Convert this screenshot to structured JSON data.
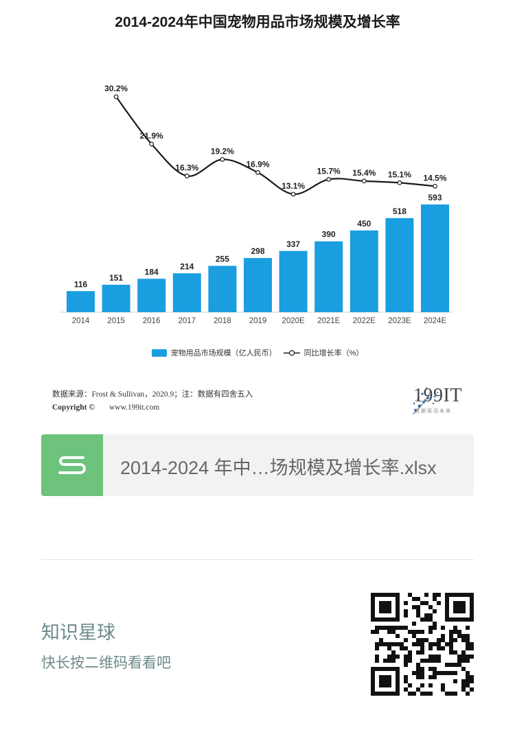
{
  "title": "2014-2024年中国宠物用品市场规模及增长率",
  "chart_data": {
    "type": "bar+line",
    "title": "2014-2024年中国宠物用品市场规模及增长率",
    "categories": [
      "2014",
      "2015",
      "2016",
      "2017",
      "2018",
      "2019",
      "2020E",
      "2021E",
      "2022E",
      "2023E",
      "2024E"
    ],
    "series": [
      {
        "name": "宠物用品市场规模（亿人民币）",
        "type": "bar",
        "color": "#1a9ee0",
        "values": [
          116,
          151,
          184,
          214,
          255,
          298,
          337,
          390,
          450,
          518,
          593
        ]
      },
      {
        "name": "同比增长率（%）",
        "type": "line",
        "color": "#1a1a1a",
        "values": [
          null,
          30.2,
          21.9,
          16.3,
          19.2,
          16.9,
          13.1,
          15.7,
          15.4,
          15.1,
          14.5
        ],
        "labels": [
          "",
          "30.2%",
          "21.9%",
          "16.3%",
          "19.2%",
          "16.9%",
          "13.1%",
          "15.7%",
          "15.4%",
          "15.1%",
          "14.5%"
        ]
      }
    ],
    "legend_position": "bottom",
    "grid": false
  },
  "legend": {
    "bar_label": "宠物用品市场规模（亿人民币）",
    "line_label": "同比增长率（%）"
  },
  "footnote": "数据来源：Frost & Sullivan，2020.9；注：数据有四舍五入",
  "copyright": {
    "label": "Copyright ©",
    "url": "www.199it.com"
  },
  "brand": {
    "name": "199IT",
    "tagline": "数据驱动未来"
  },
  "file": {
    "name": "2014-2024 年中…场规模及增长率.xlsx",
    "icon": "spreadsheet-s-icon",
    "icon_color": "#6dc27c"
  },
  "promo": {
    "title": "知识星球",
    "subtitle": "快长按二维码看看吧"
  },
  "qr_icon": "qr-code-icon"
}
